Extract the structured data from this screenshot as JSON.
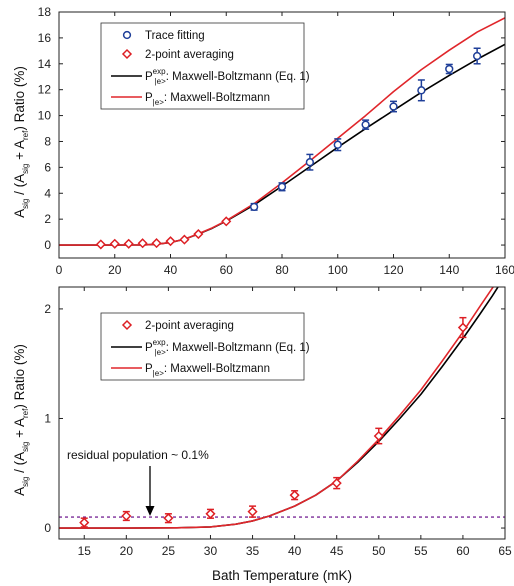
{
  "colors": {
    "trace": "#1f3f99",
    "avg": "#dd1f24",
    "mb_exp": "#000000",
    "mb": "#e0262b",
    "residual": "#7b2c99",
    "axis": "#222222",
    "legend_border": "#333333"
  },
  "chart_data": [
    {
      "type": "scatter",
      "xlim": [
        0,
        160
      ],
      "ylim": [
        -1,
        18
      ],
      "xticks": [
        "0",
        "20",
        "40",
        "60",
        "80",
        "100",
        "120",
        "140",
        "160"
      ],
      "yticks": [
        "0",
        "2",
        "4",
        "6",
        "8",
        "10",
        "12",
        "14",
        "16",
        "18"
      ],
      "ylabel": {
        "a": "A",
        "sig": "sig",
        "b": " / (A",
        "sig2": "sig",
        "c": " + A",
        "ref": "ref",
        "d": ") Ratio (%)"
      },
      "legend": {
        "trace": "Trace fitting",
        "avg": "2-point averaging",
        "mb_exp_p": "P",
        "mb_exp_sup": "exp",
        "mb_exp_sub": "|e>",
        "mb_exp_text": ": Maxwell-Boltzmann (Eq. 1)",
        "mb_p": "P",
        "mb_sub": "|e>",
        "mb_text": ": Maxwell-Boltzmann"
      },
      "series": [
        {
          "name": "Trace fitting",
          "marker": "circle",
          "x": [
            70,
            80,
            90,
            100,
            110,
            120,
            130,
            140,
            150
          ],
          "y": [
            2.95,
            4.5,
            6.4,
            7.75,
            9.3,
            10.7,
            11.95,
            13.6,
            14.6
          ],
          "err": [
            0.25,
            0.3,
            0.6,
            0.45,
            0.35,
            0.4,
            0.8,
            0.35,
            0.6
          ]
        },
        {
          "name": "2-point averaging",
          "marker": "diamond",
          "x": [
            15,
            20,
            25,
            30,
            35,
            40,
            45,
            50,
            60
          ],
          "y": [
            0.05,
            0.1,
            0.1,
            0.14,
            0.15,
            0.3,
            0.42,
            0.85,
            1.83
          ],
          "err": [
            0.04,
            0.04,
            0.04,
            0.04,
            0.05,
            0.05,
            0.06,
            0.08,
            0.1
          ]
        },
        {
          "name": "Maxwell-Boltzmann (Eq. 1)",
          "line": "black",
          "x": [
            0,
            10,
            20,
            30,
            35,
            40,
            45,
            50,
            55,
            60,
            70,
            80,
            90,
            100,
            110,
            120,
            130,
            140,
            150,
            160
          ],
          "y": [
            0,
            0,
            0,
            0.01,
            0.06,
            0.2,
            0.45,
            0.85,
            1.3,
            1.85,
            3.1,
            4.55,
            6.05,
            7.55,
            9.0,
            10.4,
            11.8,
            13.1,
            14.35,
            15.5
          ]
        },
        {
          "name": "Maxwell-Boltzmann",
          "line": "red",
          "x": [
            0,
            10,
            20,
            30,
            35,
            40,
            45,
            50,
            55,
            60,
            70,
            80,
            90,
            100,
            110,
            120,
            130,
            140,
            150,
            160
          ],
          "y": [
            0,
            0,
            0,
            0.01,
            0.06,
            0.2,
            0.45,
            0.87,
            1.33,
            1.88,
            3.2,
            4.8,
            6.5,
            8.25,
            10.0,
            11.85,
            13.55,
            15.05,
            16.45,
            17.55
          ]
        }
      ]
    },
    {
      "type": "scatter",
      "xlim": [
        12,
        65
      ],
      "ylim": [
        -0.1,
        2.2
      ],
      "xticks": [
        "15",
        "20",
        "25",
        "30",
        "35",
        "40",
        "45",
        "50",
        "55",
        "60",
        "65"
      ],
      "yticks": [
        "0",
        "1",
        "2"
      ],
      "xlabel": "Bath Temperature (mK)",
      "ylabel": {
        "a": "A",
        "sig": "sig",
        "b": " / (A",
        "sig2": "sig",
        "c": " + A",
        "ref": "ref",
        "d": ") Ratio (%)"
      },
      "annotation": "residual population ~ 0.1%",
      "residual_level": 0.1,
      "legend": {
        "avg": "2-point averaging",
        "mb_exp_p": "P",
        "mb_exp_sup": "exp",
        "mb_exp_sub": "|e>",
        "mb_exp_text": ": Maxwell-Boltzmann (Eq. 1)",
        "mb_p": "P",
        "mb_sub": "|e>",
        "mb_text": ": Maxwell-Boltzmann"
      },
      "series": [
        {
          "name": "2-point averaging",
          "marker": "diamond",
          "x": [
            15,
            20,
            25,
            30,
            35,
            40,
            45,
            50,
            60
          ],
          "y": [
            0.05,
            0.11,
            0.09,
            0.13,
            0.15,
            0.3,
            0.41,
            0.84,
            1.83
          ],
          "err": [
            0.04,
            0.04,
            0.04,
            0.04,
            0.05,
            0.04,
            0.05,
            0.07,
            0.09
          ]
        },
        {
          "name": "Maxwell-Boltzmann (Eq. 1)",
          "line": "black",
          "x": [
            12,
            20,
            26,
            30,
            33,
            35,
            37,
            40,
            42.5,
            45,
            47.5,
            50,
            52.5,
            55,
            57.5,
            60,
            62,
            63.5,
            64.5
          ],
          "y": [
            0,
            0,
            0.002,
            0.01,
            0.035,
            0.065,
            0.11,
            0.2,
            0.3,
            0.43,
            0.6,
            0.79,
            1.0,
            1.22,
            1.47,
            1.73,
            1.95,
            2.12,
            2.24
          ]
        },
        {
          "name": "Maxwell-Boltzmann",
          "line": "red",
          "x": [
            12,
            20,
            26,
            30,
            33,
            35,
            37,
            40,
            42.5,
            45,
            47.5,
            50,
            52.5,
            55,
            57.5,
            60,
            62,
            63.5,
            64.3
          ],
          "y": [
            0,
            0,
            0.002,
            0.01,
            0.035,
            0.065,
            0.11,
            0.2,
            0.3,
            0.43,
            0.61,
            0.81,
            1.03,
            1.26,
            1.52,
            1.79,
            2.02,
            2.19,
            2.28
          ]
        }
      ]
    }
  ]
}
